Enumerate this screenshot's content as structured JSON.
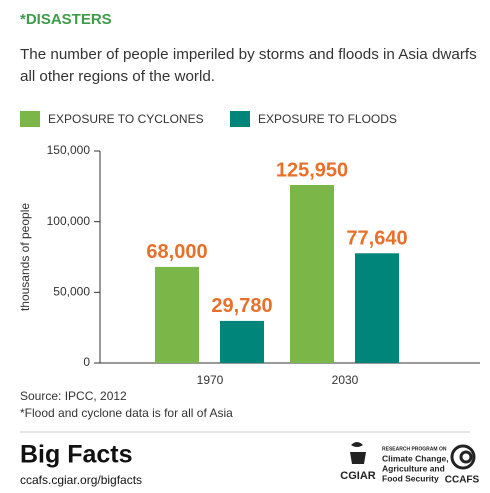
{
  "chart_data": {
    "type": "bar",
    "title": "*DISASTERS",
    "subtitle": "The number of people imperiled by storms and floods in Asia dwarfs all other regions of the world.",
    "y_label": "thousands of people",
    "categories": [
      "1970",
      "2030"
    ],
    "series": [
      {
        "name": "EXPOSURE TO CYCLONES",
        "color": "#7ab648",
        "values": [
          68000,
          125950
        ],
        "value_labels": [
          "68,000",
          "125,950"
        ]
      },
      {
        "name": "EXPOSURE TO FLOODS",
        "color": "#00857a",
        "values": [
          29780,
          77640
        ],
        "value_labels": [
          "29,780",
          "77,640"
        ]
      }
    ],
    "value_label_color": "#e8702a",
    "ylim": [
      0,
      150000
    ],
    "yticks": [
      0,
      {
        "value": 50000,
        "label": "50,000"
      },
      {
        "value": 100000,
        "label": "100,000"
      },
      {
        "value": 150000,
        "label": "150,000"
      }
    ],
    "grid": false,
    "notes": [
      "Source: IPCC, 2012",
      "*Flood and cyclone data is for all of Asia"
    ]
  },
  "footer": {
    "brand": "Big Facts",
    "url": "ccafs.cgiar.org/bigfacts",
    "cgiar": "CGIAR",
    "program": [
      "RESEARCH PROGRAM ON",
      "Climate Change,",
      "Agriculture and",
      "Food Security"
    ],
    "ccafs": "CCAFS"
  }
}
